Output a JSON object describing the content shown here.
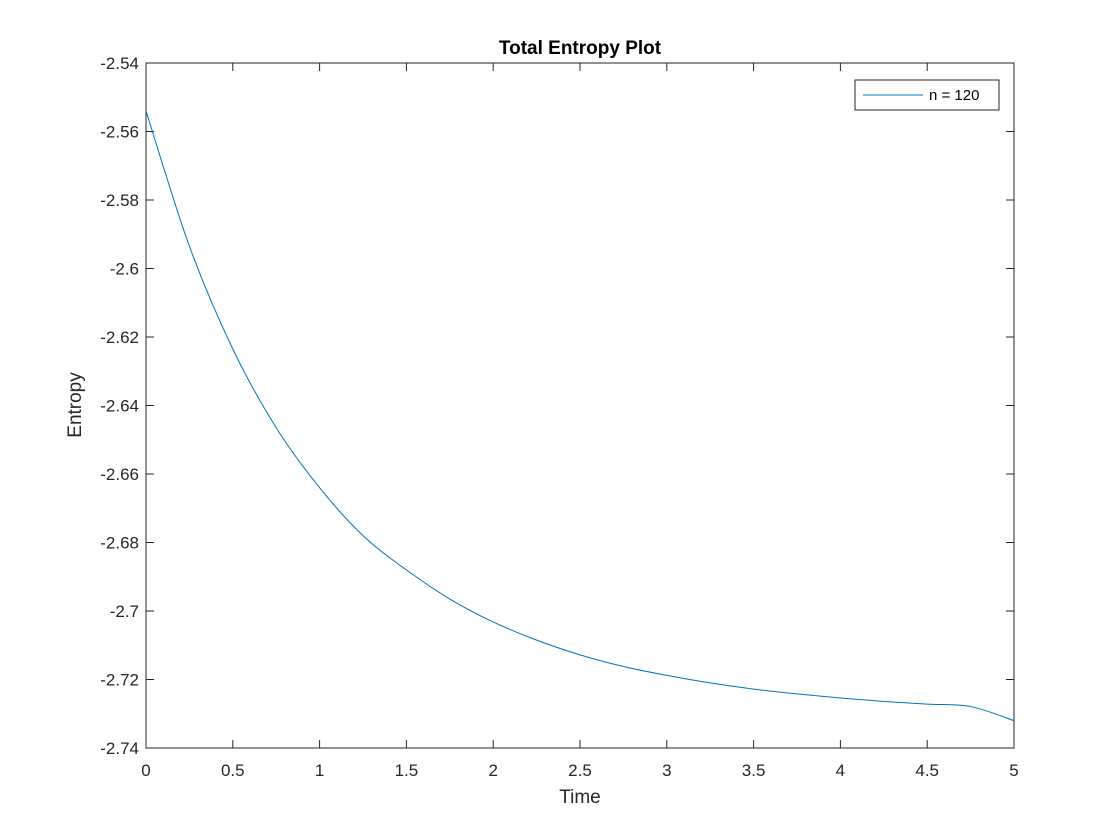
{
  "chart_data": {
    "type": "line",
    "title": "Total Entropy Plot",
    "xlabel": "Time",
    "ylabel": "Entropy",
    "xlim": [
      0,
      5
    ],
    "ylim": [
      -2.74,
      -2.54
    ],
    "xticks": [
      0,
      0.5,
      1,
      1.5,
      2,
      2.5,
      3,
      3.5,
      4,
      4.5,
      5
    ],
    "xtick_labels": [
      "0",
      "0.5",
      "1",
      "1.5",
      "2",
      "2.5",
      "3",
      "3.5",
      "4",
      "4.5",
      "5"
    ],
    "yticks": [
      -2.74,
      -2.72,
      -2.7,
      -2.68,
      -2.66,
      -2.64,
      -2.62,
      -2.6,
      -2.58,
      -2.56,
      -2.54
    ],
    "ytick_labels": [
      "-2.74",
      "-2.72",
      "-2.7",
      "-2.68",
      "-2.66",
      "-2.64",
      "-2.62",
      "-2.6",
      "-2.58",
      "-2.56",
      "-2.54"
    ],
    "grid": false,
    "legend_position": "top-right",
    "series": [
      {
        "name": "n = 120",
        "color": "#0072bd",
        "x": [
          0,
          0.25,
          0.5,
          0.75,
          1,
          1.25,
          1.5,
          1.75,
          2,
          2.25,
          2.5,
          2.75,
          3,
          3.25,
          3.5,
          3.75,
          4,
          4.25,
          4.5,
          4.75,
          5
        ],
        "y": [
          -2.554,
          -2.5935,
          -2.6235,
          -2.6465,
          -2.664,
          -2.678,
          -2.688,
          -2.6965,
          -2.7032,
          -2.7085,
          -2.7128,
          -2.7162,
          -2.7188,
          -2.721,
          -2.7228,
          -2.7242,
          -2.7254,
          -2.7264,
          -2.7272,
          -2.7279,
          -2.732
        ]
      }
    ]
  }
}
